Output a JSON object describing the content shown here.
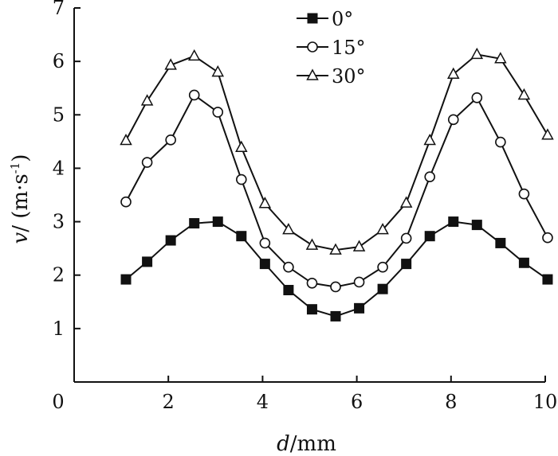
{
  "chart_data": {
    "type": "line",
    "title": "",
    "xlabel": "d/mm",
    "xlabel_parts": {
      "var": "d",
      "unit": "/mm"
    },
    "ylabel": "v/ (m·s⁻¹)",
    "ylabel_parts": {
      "var": "v",
      "unit_main": "/ (m·s",
      "unit_sup": "-1",
      "unit_close": ")"
    },
    "xlim": [
      0,
      10
    ],
    "ylim": [
      0,
      7
    ],
    "x_ticks": [
      0,
      2,
      4,
      6,
      8,
      10
    ],
    "y_ticks": [
      1,
      2,
      3,
      4,
      5,
      6,
      7
    ],
    "x_tick_labels": [
      "2",
      "4",
      "6",
      "8",
      "10"
    ],
    "y_tick_labels": [
      "1",
      "2",
      "3",
      "4",
      "5",
      "6",
      "7"
    ],
    "origin_label": "0",
    "grid": false,
    "legend_position": "top-center",
    "x": [
      1.1,
      1.55,
      2.05,
      2.55,
      3.05,
      3.55,
      4.05,
      4.55,
      5.05,
      5.55,
      6.05,
      6.55,
      7.05,
      7.55,
      8.05,
      8.55,
      9.05,
      9.55,
      10.05
    ],
    "series": [
      {
        "name": "0°",
        "marker": "filled-square",
        "values": [
          1.92,
          2.25,
          2.65,
          2.97,
          3.0,
          2.73,
          2.21,
          1.72,
          1.36,
          1.23,
          1.38,
          1.74,
          2.21,
          2.73,
          3.0,
          2.94,
          2.6,
          2.23,
          1.92
        ]
      },
      {
        "name": "15°",
        "marker": "open-circle",
        "values": [
          3.37,
          4.11,
          4.53,
          5.37,
          5.05,
          3.79,
          2.6,
          2.15,
          1.85,
          1.78,
          1.87,
          2.15,
          2.69,
          3.84,
          4.91,
          5.32,
          4.49,
          3.52,
          2.7
        ]
      },
      {
        "name": "30°",
        "marker": "open-triangle",
        "values": [
          4.52,
          5.26,
          5.93,
          6.1,
          5.8,
          4.39,
          3.34,
          2.85,
          2.56,
          2.47,
          2.53,
          2.85,
          3.35,
          4.52,
          5.76,
          6.13,
          6.05,
          5.37,
          4.62
        ]
      }
    ]
  }
}
